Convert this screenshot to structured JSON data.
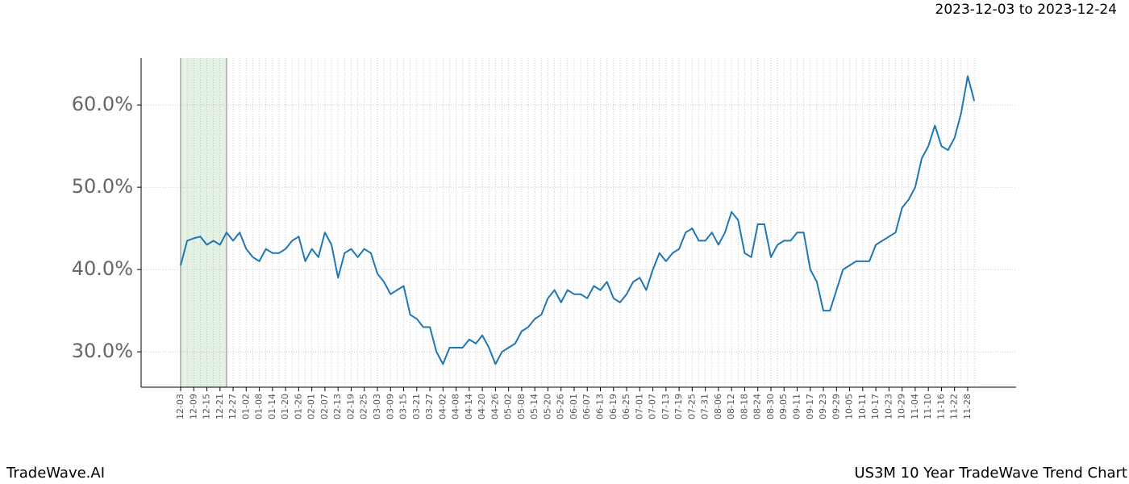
{
  "chart_data": {
    "type": "line",
    "subtitle": "2023-12-03 to 2023-12-24",
    "brand": "TradeWave.AI",
    "title": "US3M 10 Year TradeWave Trend Chart",
    "categories": [
      "12-03",
      null,
      "12-09",
      null,
      "12-15",
      null,
      "12-21",
      null,
      "12-27",
      null,
      "01-02",
      null,
      "01-08",
      null,
      "01-14",
      null,
      "01-20",
      null,
      "01-26",
      null,
      "02-01",
      null,
      "02-07",
      null,
      "02-13",
      null,
      "02-19",
      null,
      "02-25",
      null,
      "03-03",
      null,
      "03-09",
      null,
      "03-15",
      null,
      "03-21",
      null,
      "03-27",
      null,
      "04-02",
      null,
      "04-08",
      null,
      "04-14",
      null,
      "04-20",
      null,
      "04-26",
      null,
      "05-02",
      null,
      "05-08",
      null,
      "05-14",
      null,
      "05-20",
      null,
      "05-26",
      null,
      "06-01",
      null,
      "06-07",
      null,
      "06-13",
      null,
      "06-19",
      null,
      "06-25",
      null,
      "07-01",
      null,
      "07-07",
      null,
      "07-13",
      null,
      "07-19",
      null,
      "07-25",
      null,
      "07-31",
      null,
      "08-06",
      null,
      "08-12",
      null,
      "08-18",
      null,
      "08-24",
      null,
      "08-30",
      null,
      "09-05",
      null,
      "09-11",
      null,
      "09-17",
      null,
      "09-23",
      null,
      "09-29",
      null,
      "10-05",
      null,
      "10-11",
      null,
      "10-17",
      null,
      "10-23",
      null,
      "10-29",
      null,
      "11-04",
      null,
      "11-10",
      null,
      "11-16",
      null,
      "11-22",
      null,
      "11-28",
      null
    ],
    "series": [
      {
        "name": "US3M",
        "color": "#1f77b4",
        "values": [
          40.5,
          43.5,
          43.8,
          44.0,
          43.0,
          43.5,
          43.0,
          44.5,
          43.5,
          44.5,
          42.5,
          41.5,
          41.0,
          42.5,
          42.0,
          42.0,
          42.5,
          43.5,
          44.0,
          41.0,
          42.5,
          41.5,
          44.5,
          43.0,
          39.0,
          42.0,
          42.5,
          41.5,
          42.5,
          42.0,
          39.5,
          38.5,
          37.0,
          37.5,
          38.0,
          34.5,
          34.0,
          33.0,
          33.0,
          30.0,
          28.5,
          30.5,
          30.5,
          30.5,
          31.5,
          31.0,
          32.0,
          30.5,
          28.5,
          30.0,
          30.5,
          31.0,
          32.5,
          33.0,
          34.0,
          34.5,
          36.5,
          37.5,
          36.0,
          37.5,
          37.0,
          37.0,
          36.5,
          38.0,
          37.5,
          38.5,
          36.5,
          36.0,
          37.0,
          38.5,
          39.0,
          37.5,
          40.0,
          42.0,
          41.0,
          42.0,
          42.5,
          44.5,
          45.0,
          43.5,
          43.5,
          44.5,
          43.0,
          44.5,
          47.0,
          46.0,
          42.0,
          41.5,
          45.5,
          45.5,
          41.5,
          43.0,
          43.5,
          43.5,
          44.5,
          44.5,
          40.0,
          38.5,
          35.0,
          35.0,
          37.5,
          40.0,
          40.5,
          41.0,
          41.0,
          41.0,
          43.0,
          43.5,
          44.0,
          44.5,
          47.5,
          48.5,
          50.0,
          53.5,
          55.0,
          57.5,
          55.0,
          54.5,
          56.0,
          59.0,
          63.5,
          60.5
        ]
      }
    ],
    "ylim": [
      25.7,
      65.7
    ],
    "yticks": [
      {
        "value": 30,
        "label": "30.0%"
      },
      {
        "value": 40,
        "label": "40.0%"
      },
      {
        "value": 50,
        "label": "50.0%"
      },
      {
        "value": 60,
        "label": "60.0%"
      }
    ],
    "grid": true,
    "highlight": {
      "from": 0,
      "to": 7,
      "color": "#d9ecd9"
    }
  }
}
